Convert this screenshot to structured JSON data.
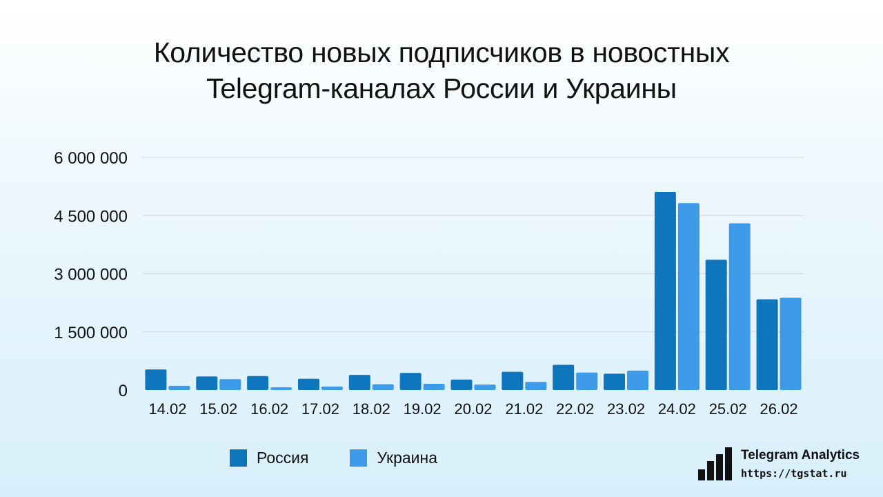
{
  "title": {
    "line1": "Количество новых подписчиков в новостных",
    "line2": "Telegram-каналах России и Украины"
  },
  "colors": {
    "russia": "#0f75bc",
    "ukraine": "#3d9ae8",
    "grid": "#d2d8dc"
  },
  "chart_data": {
    "type": "bar",
    "categories": [
      "14.02",
      "15.02",
      "16.02",
      "17.02",
      "18.02",
      "19.02",
      "20.02",
      "21.02",
      "22.02",
      "23.02",
      "24.02",
      "25.02",
      "26.02"
    ],
    "series": [
      {
        "name": "Россия",
        "color": "#0f75bc",
        "values": [
          530000,
          350000,
          360000,
          290000,
          390000,
          440000,
          270000,
          470000,
          650000,
          420000,
          5110000,
          3360000,
          2340000
        ]
      },
      {
        "name": "Украина",
        "color": "#3d9ae8",
        "values": [
          110000,
          280000,
          70000,
          90000,
          150000,
          160000,
          140000,
          210000,
          450000,
          500000,
          4820000,
          4300000,
          2380000
        ]
      }
    ],
    "yticks": [
      "0",
      "1 500 000",
      "3 000 000",
      "4 500 000",
      "6 000 000"
    ],
    "ylim": [
      0,
      6000000
    ],
    "grid": true,
    "legend": "bottom-left"
  },
  "brand": {
    "name": "Telegram Analytics",
    "url": "https://tgstat.ru"
  }
}
